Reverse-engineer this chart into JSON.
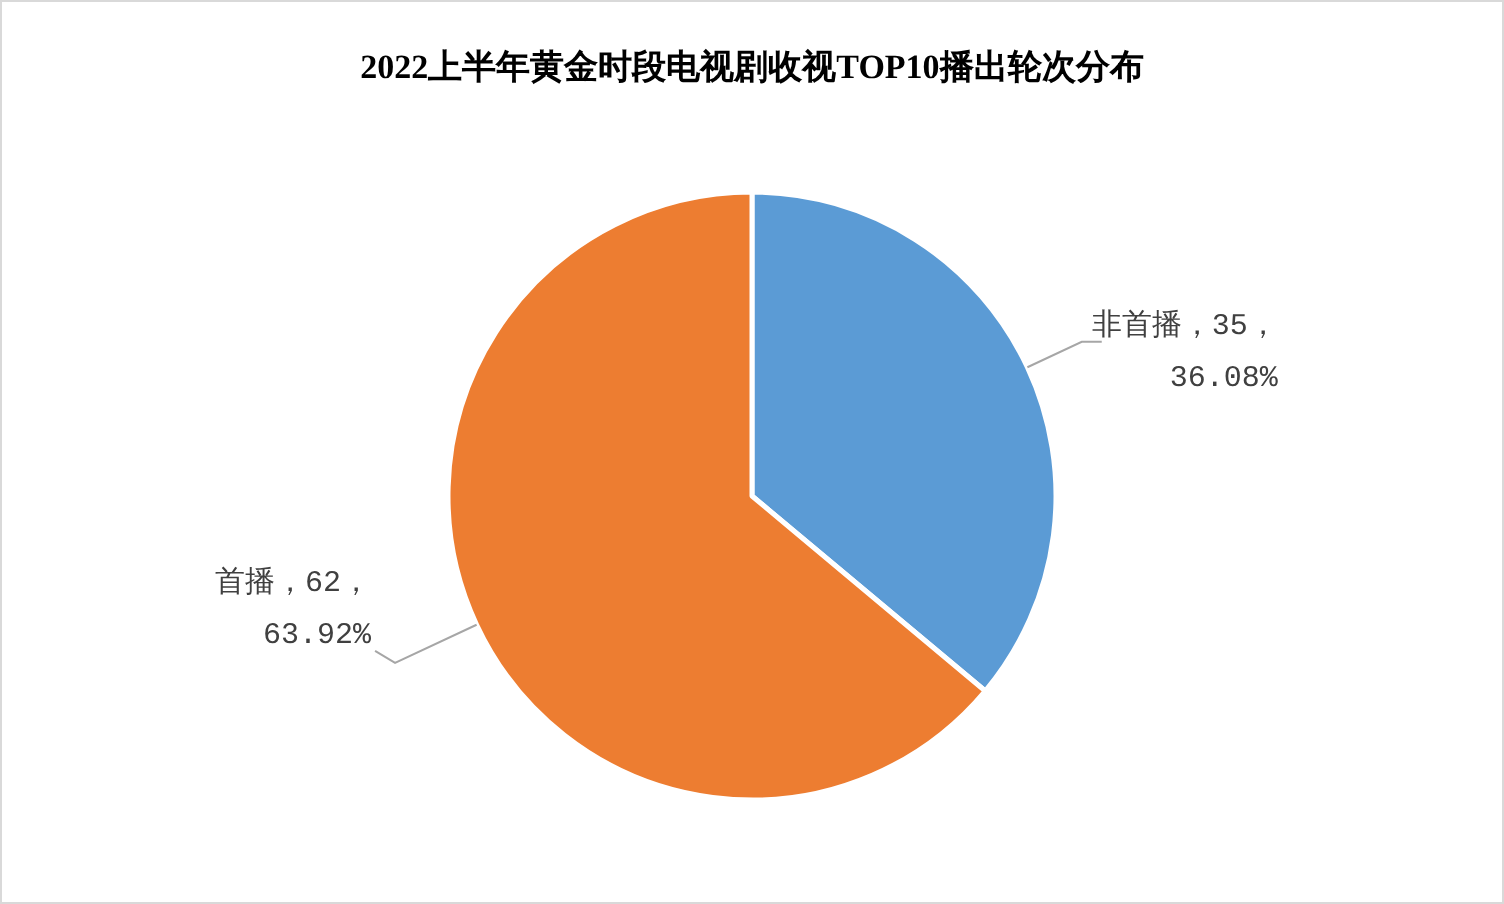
{
  "chart_data": {
    "type": "pie",
    "title": "2022上半年黄金时段电视剧收视TOP10播出轮次分布",
    "categories": [
      "非首播",
      "首播"
    ],
    "values": [
      35,
      62
    ],
    "colors": [
      "#5b9bd5",
      "#ed7d31"
    ],
    "value_labels": [
      "，35，36.08%",
      "，62，63.92%"
    ]
  }
}
